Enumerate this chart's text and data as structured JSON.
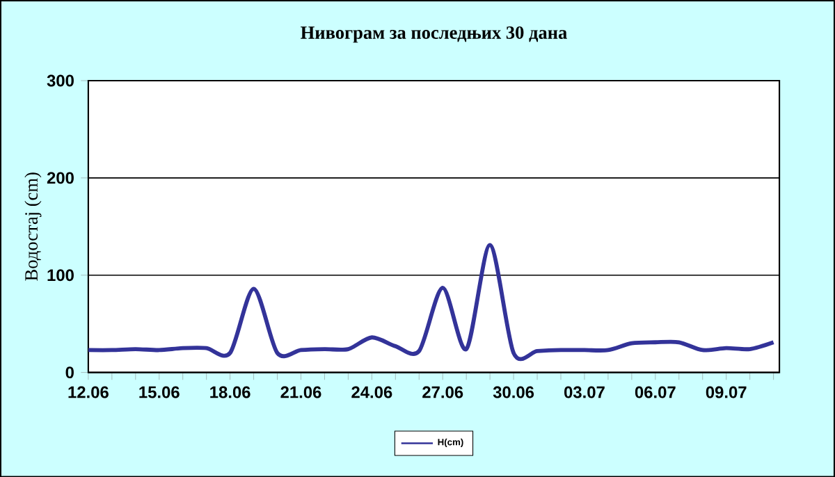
{
  "chart_data": {
    "type": "line",
    "title": "Нивограм за последњих 30 дана",
    "ylabel": "Водостај (cm)",
    "categories": [
      "12.06",
      null,
      null,
      "15.06",
      null,
      null,
      "18.06",
      null,
      null,
      "21.06",
      null,
      null,
      "24.06",
      null,
      null,
      "27.06",
      null,
      null,
      "30.06",
      null,
      null,
      "03.07",
      null,
      null,
      "06.07",
      null,
      null,
      "09.07",
      null,
      null
    ],
    "series": [
      {
        "name": "H(cm)",
        "color": "#333399",
        "values": [
          23,
          23,
          24,
          23,
          25,
          25,
          20,
          86,
          20,
          23,
          24,
          24,
          36,
          27,
          22,
          87,
          24,
          131,
          20,
          22,
          23,
          23,
          23,
          30,
          31,
          31,
          23,
          25,
          24,
          31
        ]
      }
    ],
    "ylim": [
      0,
      300
    ],
    "yticks": [
      0,
      100,
      200,
      300
    ],
    "grid": "y",
    "legend": "bottom",
    "marker": "none",
    "line_style": "solid"
  }
}
